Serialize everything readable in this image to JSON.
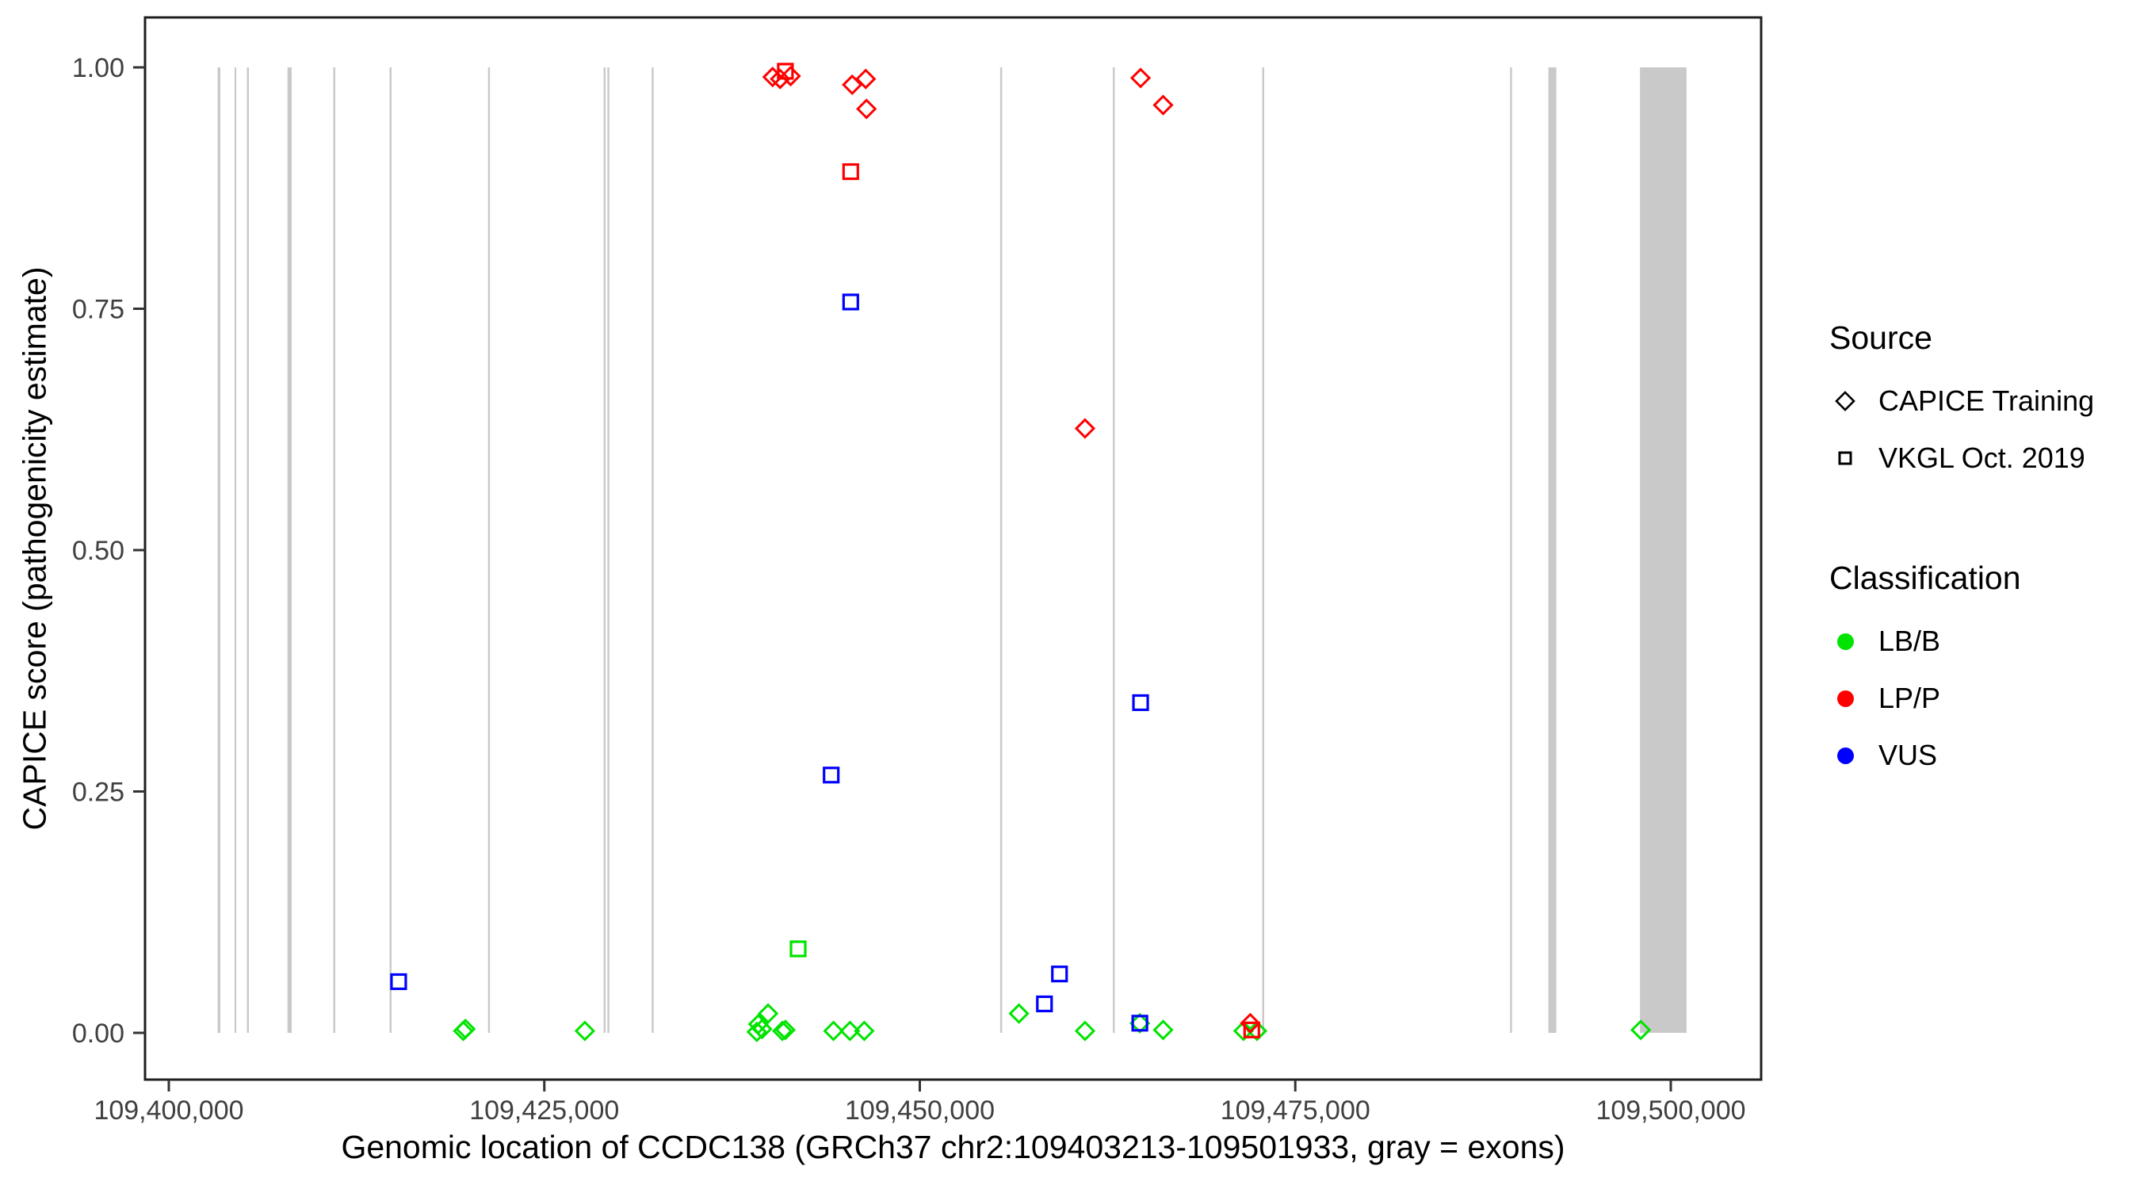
{
  "chart_data": {
    "type": "scatter",
    "title": "",
    "xlabel": "Genomic location of CCDC138 (GRCh37 chr2:109403213-109501933, gray = exons)",
    "ylabel": "CAPICE score (pathogenicity estimate)",
    "x_domain": [
      109398000,
      109506000
    ],
    "y_domain": [
      -0.065,
      1.07
    ],
    "grid": "off",
    "legend_position": "right",
    "x_ticks": [
      {
        "value": 109400000,
        "label": "109,400,000"
      },
      {
        "value": 109425000,
        "label": "109,425,000"
      },
      {
        "value": 109450000,
        "label": "109,450,000"
      },
      {
        "value": 109475000,
        "label": "109,475,000"
      },
      {
        "value": 109500000,
        "label": "109,500,000"
      }
    ],
    "y_ticks": [
      {
        "value": 0.0,
        "label": "0.00"
      },
      {
        "value": 0.25,
        "label": "0.25"
      },
      {
        "value": 0.5,
        "label": "0.50"
      },
      {
        "value": 0.75,
        "label": "0.75"
      },
      {
        "value": 1.0,
        "label": "1.00"
      }
    ],
    "exon_color": "#C9C9C9",
    "exons": [
      {
        "start": 109403250,
        "end": 109403430
      },
      {
        "start": 109404380,
        "end": 109404490
      },
      {
        "start": 109405200,
        "end": 109405330
      },
      {
        "start": 109407900,
        "end": 109408180
      },
      {
        "start": 109410950,
        "end": 109411080
      },
      {
        "start": 109414700,
        "end": 109414830
      },
      {
        "start": 109421250,
        "end": 109421380
      },
      {
        "start": 109428950,
        "end": 109429080
      },
      {
        "start": 109429200,
        "end": 109429330
      },
      {
        "start": 109432150,
        "end": 109432280
      },
      {
        "start": 109455350,
        "end": 109455480
      },
      {
        "start": 109462850,
        "end": 109462980
      },
      {
        "start": 109472800,
        "end": 109472930
      },
      {
        "start": 109489300,
        "end": 109489430
      },
      {
        "start": 109491850,
        "end": 109492380
      },
      {
        "start": 109497950,
        "end": 109501050
      }
    ],
    "series": [
      {
        "name": "CAPICE Training",
        "marker": "diamond",
        "classification": "LB/B",
        "color": "#00E400",
        "points": [
          [
            109419600,
            0.002
          ],
          [
            109419750,
            0.004
          ],
          [
            109427700,
            0.002
          ],
          [
            109439150,
            0.001
          ],
          [
            109439250,
            0.009
          ],
          [
            109439500,
            0.004
          ],
          [
            109439900,
            0.02
          ],
          [
            109440850,
            0.002
          ],
          [
            109441050,
            0.003
          ],
          [
            109444250,
            0.002
          ],
          [
            109445350,
            0.002
          ],
          [
            109446300,
            0.002
          ],
          [
            109456600,
            0.02
          ],
          [
            109461000,
            0.002
          ],
          [
            109464650,
            0.01
          ],
          [
            109466200,
            0.003
          ],
          [
            109471550,
            0.002
          ],
          [
            109472450,
            0.002
          ],
          [
            109498000,
            0.003
          ]
        ]
      },
      {
        "name": "CAPICE Training",
        "marker": "diamond",
        "classification": "LP/P",
        "color": "#FF0000",
        "points": [
          [
            109440200,
            0.99
          ],
          [
            109440700,
            0.988
          ],
          [
            109441400,
            0.991
          ],
          [
            109445500,
            0.982
          ],
          [
            109446400,
            0.988
          ],
          [
            109446450,
            0.957
          ],
          [
            109464700,
            0.989
          ],
          [
            109466200,
            0.961
          ],
          [
            109461000,
            0.626
          ],
          [
            109472000,
            0.01
          ]
        ]
      },
      {
        "name": "VKGL Oct. 2019",
        "marker": "square",
        "classification": "LB/B",
        "color": "#00E400",
        "points": [
          [
            109441900,
            0.087
          ]
        ]
      },
      {
        "name": "VKGL Oct. 2019",
        "marker": "square",
        "classification": "VUS",
        "color": "#0000FF",
        "points": [
          [
            109415300,
            0.053
          ],
          [
            109444100,
            0.267
          ],
          [
            109445400,
            0.757
          ],
          [
            109458300,
            0.03
          ],
          [
            109459300,
            0.061
          ],
          [
            109464700,
            0.342
          ],
          [
            109464650,
            0.01
          ]
        ]
      },
      {
        "name": "VKGL Oct. 2019",
        "marker": "square",
        "classification": "LP/P",
        "color": "#FF0000",
        "points": [
          [
            109441050,
            0.996
          ],
          [
            109445400,
            0.892
          ],
          [
            109472100,
            0.003
          ]
        ]
      }
    ]
  },
  "legend": {
    "source": {
      "title": "Source",
      "items": [
        {
          "label": "CAPICE Training",
          "marker": "diamond"
        },
        {
          "label": "VKGL Oct. 2019",
          "marker": "square"
        }
      ]
    },
    "classification": {
      "title": "Classification",
      "items": [
        {
          "label": "LB/B",
          "color": "#00E400"
        },
        {
          "label": "LP/P",
          "color": "#FF0000"
        },
        {
          "label": "VUS",
          "color": "#0000FF"
        }
      ]
    }
  }
}
